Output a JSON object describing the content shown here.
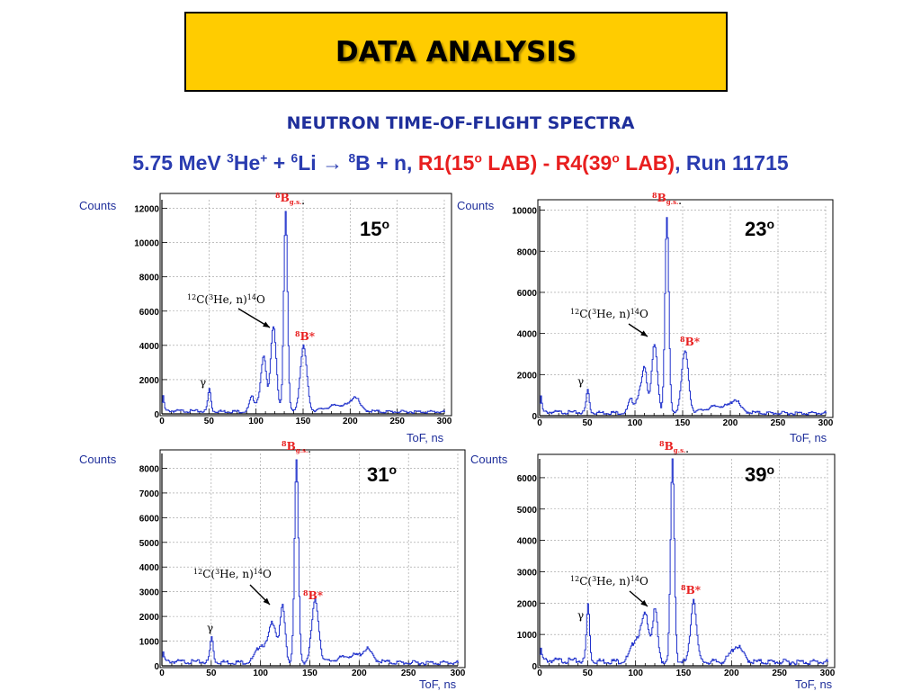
{
  "slide": {
    "title": "DATA ANALYSIS",
    "subtitle": "NEUTRON TIME-OF-FLIGHT SPECTRA",
    "reaction": {
      "energy": "5.75 MeV ",
      "he_mass": "3",
      "he": "He",
      "he_charge": "+",
      "plus": " + ",
      "li_mass": "6",
      "li": "Li ",
      "arrow": "→",
      "b_mass": "8",
      "b": "B + n, ",
      "range_a": "R1(15",
      "deg_a": "o",
      "range_b": " LAB) - R4(39",
      "deg_b": "o",
      "range_c": " LAB)",
      "run": ", Run 11715"
    }
  },
  "colors": {
    "title_bg": "#ffcc00",
    "navy": "#1f2f9b",
    "red": "#e81f1f",
    "line": "#2233cc"
  },
  "annotation_text": {
    "bgs_mass": "8",
    "bgs": "B",
    "bgs_sub": "g.s.",
    "bgs_dot": ".",
    "bstar_mass": "8",
    "bstar": "B*",
    "gamma": "γ",
    "c12_mass": "12",
    "c12_a": "C(",
    "c12_he_mass": "3",
    "c12_b": "He, n)",
    "c12_o_mass": "14",
    "c12_o": "O"
  },
  "chart_data": [
    {
      "type": "line",
      "angle": "15",
      "angle_sup": "o",
      "ylabel": "Counts",
      "xlabel": "ToF, ns",
      "xlim": [
        0,
        300
      ],
      "ylim": [
        0,
        12500
      ],
      "xticks": [
        0,
        50,
        100,
        150,
        200,
        250,
        300
      ],
      "yticks": [
        0,
        2000,
        4000,
        6000,
        8000,
        10000,
        12000
      ],
      "peaks": [
        {
          "x": 1,
          "y": 800,
          "w": 1.0
        },
        {
          "x": 50,
          "y": 1300,
          "w": 1.6
        },
        {
          "x": 95,
          "y": 800,
          "w": 2.5
        },
        {
          "x": 105,
          "y": 1000,
          "w": 4.0
        },
        {
          "x": 108,
          "y": 2400,
          "w": 2.5
        },
        {
          "x": 118,
          "y": 5000,
          "w": 3.0
        },
        {
          "x": 131,
          "y": 11700,
          "w": 2.0
        },
        {
          "x": 150,
          "y": 3800,
          "w": 3.5
        },
        {
          "x": 190,
          "y": 400,
          "w": 15.0
        },
        {
          "x": 205,
          "y": 650,
          "w": 4.0
        }
      ]
    },
    {
      "type": "line",
      "angle": "23",
      "angle_sup": "o",
      "ylabel": "Counts",
      "xlabel": "ToF, ns",
      "xlim": [
        0,
        300
      ],
      "ylim": [
        0,
        10200
      ],
      "xticks": [
        0,
        50,
        100,
        150,
        200,
        250,
        300
      ],
      "yticks": [
        0,
        2000,
        4000,
        6000,
        8000,
        10000
      ],
      "peaks": [
        {
          "x": 1,
          "y": 700,
          "w": 1.0
        },
        {
          "x": 50,
          "y": 1100,
          "w": 1.6
        },
        {
          "x": 95,
          "y": 600,
          "w": 2.5
        },
        {
          "x": 105,
          "y": 1000,
          "w": 4.0
        },
        {
          "x": 110,
          "y": 1700,
          "w": 2.5
        },
        {
          "x": 120,
          "y": 3300,
          "w": 3.0
        },
        {
          "x": 133,
          "y": 9600,
          "w": 2.0
        },
        {
          "x": 152,
          "y": 3000,
          "w": 3.5
        },
        {
          "x": 190,
          "y": 350,
          "w": 15.0
        },
        {
          "x": 205,
          "y": 450,
          "w": 4.0
        }
      ]
    },
    {
      "type": "line",
      "angle": "31",
      "angle_sup": "o",
      "ylabel": "Counts",
      "xlabel": "ToF, ns",
      "xlim": [
        0,
        300
      ],
      "ylim": [
        0,
        8600
      ],
      "xticks": [
        0,
        50,
        100,
        150,
        200,
        250,
        300
      ],
      "yticks": [
        0,
        1000,
        2000,
        3000,
        4000,
        5000,
        6000,
        7000,
        8000
      ],
      "peaks": [
        {
          "x": 1,
          "y": 300,
          "w": 1.0
        },
        {
          "x": 50,
          "y": 1000,
          "w": 1.6
        },
        {
          "x": 100,
          "y": 700,
          "w": 5.0
        },
        {
          "x": 112,
          "y": 1600,
          "w": 4.0
        },
        {
          "x": 122,
          "y": 2200,
          "w": 2.5
        },
        {
          "x": 136,
          "y": 8200,
          "w": 2.0
        },
        {
          "x": 155,
          "y": 2500,
          "w": 3.5
        },
        {
          "x": 195,
          "y": 300,
          "w": 15.0
        },
        {
          "x": 208,
          "y": 350,
          "w": 4.0
        }
      ]
    },
    {
      "type": "line",
      "angle": "39",
      "angle_sup": "o",
      "ylabel": "Counts",
      "xlabel": "ToF, ns",
      "xlim": [
        0,
        300
      ],
      "ylim": [
        0,
        6600
      ],
      "xticks": [
        0,
        50,
        100,
        150,
        200,
        250,
        300
      ],
      "yticks": [
        0,
        1000,
        2000,
        3000,
        4000,
        5000,
        6000
      ],
      "peaks": [
        {
          "x": 1,
          "y": 300,
          "w": 1.0
        },
        {
          "x": 50,
          "y": 1800,
          "w": 1.6
        },
        {
          "x": 100,
          "y": 700,
          "w": 5.0
        },
        {
          "x": 110,
          "y": 1400,
          "w": 4.0
        },
        {
          "x": 120,
          "y": 1600,
          "w": 2.5
        },
        {
          "x": 138,
          "y": 6400,
          "w": 2.0
        },
        {
          "x": 160,
          "y": 2000,
          "w": 3.0
        },
        {
          "x": 205,
          "y": 500,
          "w": 6.0
        }
      ]
    }
  ]
}
